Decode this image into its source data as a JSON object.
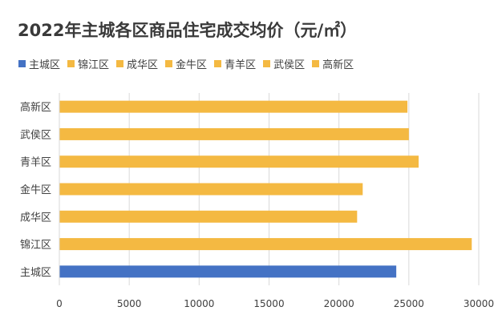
{
  "title": "2022年主城各区商品住宅成交均价（元/㎡）",
  "colors": {
    "highlight": "#4472C4",
    "default": "#F4B942",
    "grid": "#D9D9D9",
    "text": "#404040"
  },
  "legend": [
    {
      "label": "主城区",
      "color": "#4472C4"
    },
    {
      "label": "锦江区",
      "color": "#F4B942"
    },
    {
      "label": "成华区",
      "color": "#F4B942"
    },
    {
      "label": "金牛区",
      "color": "#F4B942"
    },
    {
      "label": "青羊区",
      "color": "#F4B942"
    },
    {
      "label": "武侯区",
      "color": "#F4B942"
    },
    {
      "label": "高新区",
      "color": "#F4B942"
    }
  ],
  "chart_data": {
    "type": "bar",
    "orientation": "horizontal",
    "title": "2022年主城各区商品住宅成交均价（元/㎡）",
    "categories": [
      "主城区",
      "锦江区",
      "成华区",
      "金牛区",
      "青羊区",
      "武侯区",
      "高新区"
    ],
    "values": [
      24100,
      29500,
      21300,
      21700,
      25700,
      25000,
      24900
    ],
    "xlim": [
      0,
      30000
    ],
    "xticks": [
      "0",
      "5000",
      "10000",
      "15000",
      "20000",
      "25000",
      "30000"
    ],
    "grid": true,
    "legend_position": "top"
  }
}
